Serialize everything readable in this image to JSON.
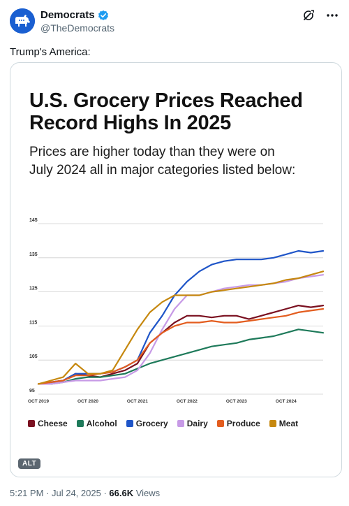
{
  "post": {
    "display_name": "Democrats",
    "handle": "@TheDemocrats",
    "text": "Trump's America:",
    "time": "5:21 PM",
    "sep1": " · ",
    "date": "Jul 24, 2025",
    "sep2": " · ",
    "views_count": "66.6K",
    "views_label": " Views",
    "alt_badge": "ALT"
  },
  "icons": {
    "avatar": "donkey-logo",
    "verified": "verified-badge-icon",
    "grok": "grok-icon",
    "more": "more-icon"
  },
  "card": {
    "title_line1": "U.S. Grocery Prices Reached",
    "title_line2": "Record Highs In 2025",
    "subtitle_line1": "Prices are higher today than they were on",
    "subtitle_line2": "July 2024 all in major categories listed below:"
  },
  "chart_data": {
    "type": "line",
    "title": "U.S. Grocery Prices Reached Record Highs In 2025",
    "subtitle": "Prices are higher today than they were on July 2024 all in major categories listed below:",
    "ylim": [
      95,
      145
    ],
    "yticks": [
      95,
      105,
      115,
      125,
      135,
      145
    ],
    "x": [
      "OCT 2019",
      "JAN 2020",
      "APR 2020",
      "JUL 2020",
      "OCT 2020",
      "JAN 2021",
      "APR 2021",
      "JUL 2021",
      "OCT 2021",
      "JAN 2022",
      "APR 2022",
      "JUL 2022",
      "OCT 2022",
      "JAN 2023",
      "APR 2023",
      "JUL 2023",
      "OCT 2023",
      "JAN 2024",
      "APR 2024",
      "JUL 2024",
      "OCT 2024",
      "JAN 2025",
      "APR 2025",
      "JUL 2025"
    ],
    "xticks": [
      "OCT 2019",
      "OCT 2020",
      "OCT 2021",
      "OCT 2022",
      "OCT 2023",
      "OCT 2024"
    ],
    "grid": true,
    "legend_position": "bottom",
    "series": [
      {
        "name": "Cheese",
        "color": "#7a1020",
        "values": [
          98,
          98.5,
          99,
          101,
          100.5,
          100,
          101,
          102,
          104,
          110,
          113,
          116,
          118,
          118,
          117.5,
          118,
          118,
          117,
          118,
          119,
          120,
          121,
          120.5,
          121
        ]
      },
      {
        "name": "Alcohol",
        "color": "#1e7a5a",
        "values": [
          98,
          98,
          98.5,
          99.5,
          100,
          100,
          100.5,
          101,
          102.5,
          104,
          105,
          106,
          107,
          108,
          109,
          109.5,
          110,
          111,
          111.5,
          112,
          113,
          114,
          113.5,
          113
        ]
      },
      {
        "name": "Grocery",
        "color": "#1f55c8",
        "values": [
          98,
          98.5,
          99,
          101,
          101,
          101,
          101.5,
          103,
          105,
          113,
          118,
          124,
          128,
          131,
          133,
          134,
          134.5,
          134.5,
          134.5,
          135,
          136,
          137,
          136.5,
          137
        ]
      },
      {
        "name": "Dairy",
        "color": "#c79ae6",
        "values": [
          98,
          98,
          98.5,
          99,
          99,
          99,
          99.5,
          100,
          102,
          107,
          114,
          120,
          124,
          124,
          125,
          126,
          126.5,
          127,
          127,
          127.5,
          128,
          129,
          129.5,
          130
        ]
      },
      {
        "name": "Produce",
        "color": "#e35d1f",
        "values": [
          98,
          98.5,
          99,
          100.5,
          100.5,
          101,
          101.5,
          103,
          105,
          110,
          113,
          115,
          116,
          116,
          116.5,
          116,
          116,
          116.5,
          117,
          117.5,
          118,
          119,
          119.5,
          120
        ]
      },
      {
        "name": "Meat",
        "color": "#c6880f",
        "values": [
          98,
          99,
          100,
          104,
          101,
          101,
          102,
          108,
          114,
          119,
          122,
          124,
          124,
          124,
          125,
          125.5,
          126,
          126.5,
          127,
          127.5,
          128.5,
          129,
          130,
          131
        ]
      }
    ]
  }
}
